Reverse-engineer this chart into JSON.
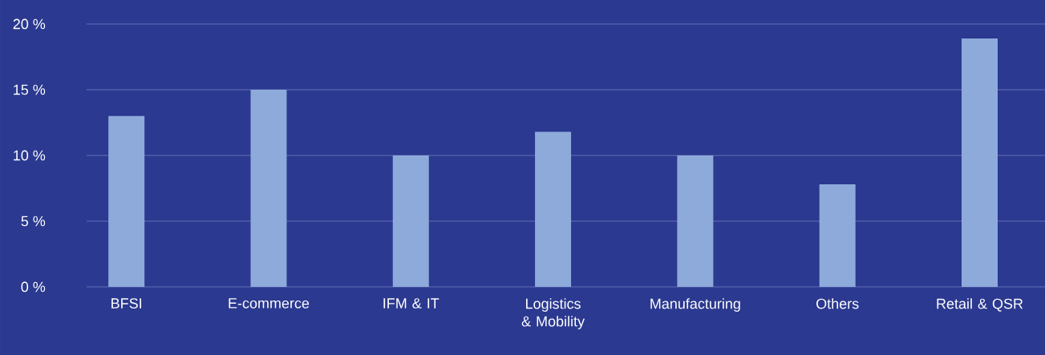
{
  "chart_data": {
    "type": "bar",
    "categories": [
      "BFSI",
      "E-commerce",
      "IFM & IT",
      "Logistics & Mobility",
      "Manufacturing",
      "Others",
      "Retail & QSR"
    ],
    "values": [
      13,
      15,
      10,
      11.8,
      10,
      7.8,
      18.9
    ],
    "color": "#8eaadb",
    "ylim": [
      0,
      20
    ],
    "yticks": [
      {
        "value": 0,
        "label": "0 %"
      },
      {
        "value": 5,
        "label": "5 %"
      },
      {
        "value": 10,
        "label": "10 %"
      },
      {
        "value": 15,
        "label": "15 %"
      },
      {
        "value": 20,
        "label": "20 %"
      }
    ],
    "grid": "y"
  }
}
